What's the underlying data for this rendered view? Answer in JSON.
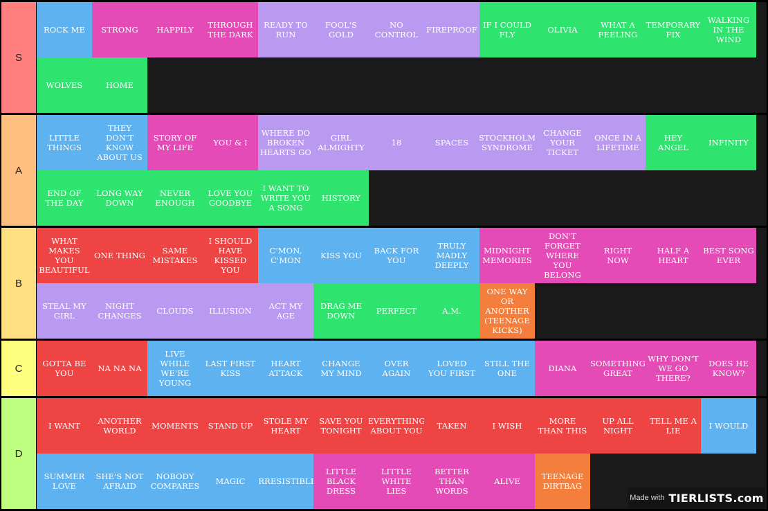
{
  "tiers": [
    {
      "label": "S",
      "color": "#ff7f7f",
      "items": [
        {
          "text": "ROCK ME",
          "c": "blue"
        },
        {
          "text": "STRONG",
          "c": "pink"
        },
        {
          "text": "HAPPILY",
          "c": "pink"
        },
        {
          "text": "THROUGH THE DARK",
          "c": "pink"
        },
        {
          "text": "READY TO RUN",
          "c": "purple"
        },
        {
          "text": "FOOL'S GOLD",
          "c": "purple"
        },
        {
          "text": "NO CONTROL",
          "c": "purple"
        },
        {
          "text": "FIREPROOF",
          "c": "purple"
        },
        {
          "text": "IF I COULD FLY",
          "c": "green"
        },
        {
          "text": "OLIVIA",
          "c": "green"
        },
        {
          "text": "WHAT A FEELING",
          "c": "green"
        },
        {
          "text": "TEMPORARY FIX",
          "c": "green"
        },
        {
          "text": "WALKING IN THE WIND",
          "c": "green"
        },
        {
          "text": "WOLVES",
          "c": "green"
        },
        {
          "text": "HOME",
          "c": "green"
        }
      ]
    },
    {
      "label": "A",
      "color": "#ffbf7f",
      "items": [
        {
          "text": "LITTLE THINGS",
          "c": "blue"
        },
        {
          "text": "THEY DON'T KNOW ABOUT US",
          "c": "blue"
        },
        {
          "text": "STORY OF MY LIFE",
          "c": "pink"
        },
        {
          "text": "YOU & I",
          "c": "pink"
        },
        {
          "text": "WHERE DO BROKEN HEARTS GO",
          "c": "purple"
        },
        {
          "text": "GIRL ALMIGHTY",
          "c": "purple"
        },
        {
          "text": "18",
          "c": "purple"
        },
        {
          "text": "SPACES",
          "c": "purple"
        },
        {
          "text": "STOCKHOLM SYNDROME",
          "c": "purple"
        },
        {
          "text": "CHANGE YOUR TICKET",
          "c": "purple"
        },
        {
          "text": "ONCE IN A LIFETIME",
          "c": "purple"
        },
        {
          "text": "HEY ANGEL",
          "c": "green"
        },
        {
          "text": "INFINITY",
          "c": "green"
        },
        {
          "text": "END OF THE DAY",
          "c": "green"
        },
        {
          "text": "LONG WAY DOWN",
          "c": "green"
        },
        {
          "text": "NEVER ENOUGH",
          "c": "green"
        },
        {
          "text": "LOVE YOU GOODBYE",
          "c": "green"
        },
        {
          "text": "I WANT TO WRITE YOU A SONG",
          "c": "green"
        },
        {
          "text": "HISTORY",
          "c": "green"
        }
      ]
    },
    {
      "label": "B",
      "color": "#ffdf7f",
      "items": [
        {
          "text": "WHAT MAKES YOU BEAUTIFUL",
          "c": "red"
        },
        {
          "text": "ONE THING",
          "c": "red"
        },
        {
          "text": "SAME MISTAKES",
          "c": "red"
        },
        {
          "text": "I SHOULD HAVE KISSED YOU",
          "c": "red"
        },
        {
          "text": "C'MON, C'MON",
          "c": "blue"
        },
        {
          "text": "KISS YOU",
          "c": "blue"
        },
        {
          "text": "BACK FOR YOU",
          "c": "blue"
        },
        {
          "text": "TRULY MADLY DEEPLY",
          "c": "blue"
        },
        {
          "text": "MIDNIGHT MEMORIES",
          "c": "pink"
        },
        {
          "text": "DON'T FORGET WHERE YOU BELONG",
          "c": "pink"
        },
        {
          "text": "RIGHT NOW",
          "c": "pink"
        },
        {
          "text": "HALF A HEART",
          "c": "pink"
        },
        {
          "text": "BEST SONG EVER",
          "c": "pink"
        },
        {
          "text": "STEAL MY GIRL",
          "c": "purple"
        },
        {
          "text": "NIGHT CHANGES",
          "c": "purple"
        },
        {
          "text": "CLOUDS",
          "c": "purple"
        },
        {
          "text": "ILLUSION",
          "c": "purple"
        },
        {
          "text": "ACT MY AGE",
          "c": "purple"
        },
        {
          "text": "DRAG ME DOWN",
          "c": "green"
        },
        {
          "text": "PERFECT",
          "c": "green"
        },
        {
          "text": "A.M.",
          "c": "green"
        },
        {
          "text": "ONE WAY OR ANOTHER (TEENAGE KICKS)",
          "c": "orange"
        }
      ]
    },
    {
      "label": "C",
      "color": "#ffff7f",
      "items": [
        {
          "text": "GOTTA BE YOU",
          "c": "red"
        },
        {
          "text": "NA NA NA",
          "c": "red"
        },
        {
          "text": "LIVE WHILE WE'RE YOUNG",
          "c": "blue"
        },
        {
          "text": "LAST FIRST KISS",
          "c": "blue"
        },
        {
          "text": "HEART ATTACK",
          "c": "blue"
        },
        {
          "text": "CHANGE MY MIND",
          "c": "blue"
        },
        {
          "text": "OVER AGAIN",
          "c": "blue"
        },
        {
          "text": "LOVED YOU FIRST",
          "c": "blue"
        },
        {
          "text": "STILL THE ONE",
          "c": "blue"
        },
        {
          "text": "DIANA",
          "c": "pink"
        },
        {
          "text": "SOMETHING GREAT",
          "c": "pink"
        },
        {
          "text": "WHY DON'T WE GO THERE?",
          "c": "pink"
        },
        {
          "text": "DOES HE KNOW?",
          "c": "pink"
        }
      ]
    },
    {
      "label": "D",
      "color": "#bfff7f",
      "items": [
        {
          "text": "I WANT",
          "c": "red"
        },
        {
          "text": "ANOTHER WORLD",
          "c": "red"
        },
        {
          "text": "MOMENTS",
          "c": "red"
        },
        {
          "text": "STAND UP",
          "c": "red"
        },
        {
          "text": "STOLE MY HEART",
          "c": "red"
        },
        {
          "text": "SAVE YOU TONIGHT",
          "c": "red"
        },
        {
          "text": "EVERYTHING ABOUT YOU",
          "c": "red"
        },
        {
          "text": "TAKEN",
          "c": "red"
        },
        {
          "text": "I WISH",
          "c": "red"
        },
        {
          "text": "MORE THAN THIS",
          "c": "red"
        },
        {
          "text": "UP ALL NIGHT",
          "c": "red"
        },
        {
          "text": "TELL ME A LIE",
          "c": "red"
        },
        {
          "text": "I WOULD",
          "c": "blue"
        },
        {
          "text": "SUMMER LOVE",
          "c": "blue"
        },
        {
          "text": "SHE'S NOT AFRAID",
          "c": "blue"
        },
        {
          "text": "NOBODY COMPARES",
          "c": "blue"
        },
        {
          "text": "MAGIC",
          "c": "blue"
        },
        {
          "text": "IRRESISTIBLE",
          "c": "blue"
        },
        {
          "text": "LITTLE BLACK DRESS",
          "c": "pink"
        },
        {
          "text": "LITTLE WHITE LIES",
          "c": "pink"
        },
        {
          "text": "BETTER THAN WORDS",
          "c": "pink"
        },
        {
          "text": "ALIVE",
          "c": "pink"
        },
        {
          "text": "TEENAGE DIRTBAG",
          "c": "orange"
        }
      ]
    }
  ],
  "watermark": {
    "made_with": "Made with",
    "brand": "TIERLISTS.com"
  }
}
